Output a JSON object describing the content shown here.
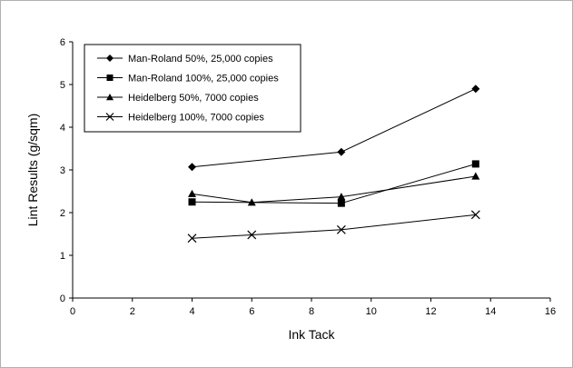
{
  "chart_data": {
    "type": "line",
    "title": "",
    "xlabel": "Ink Tack",
    "ylabel": "Lint Results (g/sqm)",
    "xlim": [
      0,
      16
    ],
    "ylim": [
      0,
      6
    ],
    "x_ticks": [
      "0",
      "2",
      "4",
      "6",
      "8",
      "10",
      "12",
      "14",
      "16"
    ],
    "y_ticks": [
      "0",
      "1",
      "2",
      "3",
      "4",
      "5",
      "6"
    ],
    "grid": false,
    "legend_position": "top-left",
    "series": [
      {
        "name": "Man-Roland 50%, 25,000 copies",
        "marker": "diamond",
        "x": [
          4,
          9,
          13.5
        ],
        "y": [
          3.07,
          3.42,
          4.9
        ]
      },
      {
        "name": "Man-Roland 100%, 25,000 copies",
        "marker": "square",
        "x": [
          4,
          9,
          13.5
        ],
        "y": [
          2.25,
          2.22,
          3.14
        ]
      },
      {
        "name": "Heidelberg 50%, 7000 copies",
        "marker": "triangle",
        "x": [
          4,
          6,
          9,
          13.5
        ],
        "y": [
          2.44,
          2.24,
          2.37,
          2.85
        ]
      },
      {
        "name": "Heidelberg 100%, 7000 copies",
        "marker": "x",
        "x": [
          4,
          6,
          9,
          13.5
        ],
        "y": [
          1.4,
          1.48,
          1.6,
          1.95
        ]
      }
    ]
  }
}
